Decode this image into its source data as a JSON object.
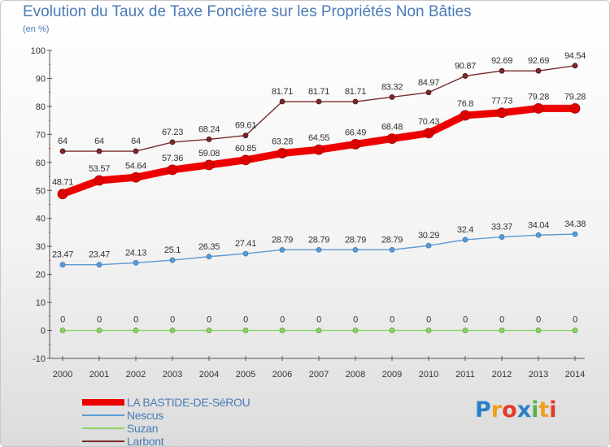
{
  "header": {
    "title": "Evolution du Taux de Taxe Foncière sur les Propriétés Non Bâties",
    "unit": "(en %)"
  },
  "logo": {
    "text": "Proxiti",
    "colors": [
      "#2c7fc9",
      "#f0a020",
      "#e23a2a",
      "#2c7fc9",
      "#56b447",
      "#f0a020",
      "#e23a2a"
    ]
  },
  "chart_data": {
    "type": "line",
    "title": "Evolution du Taux de Taxe Foncière sur les Propriétés Non Bâties",
    "ylabel": "(en %)",
    "xlabel": "",
    "x": [
      "2000",
      "2001",
      "2002",
      "2003",
      "2004",
      "2005",
      "2006",
      "2007",
      "2008",
      "2009",
      "2010",
      "2011",
      "2012",
      "2013",
      "2014"
    ],
    "ylim": [
      -10,
      100
    ],
    "yticks": [
      "-10",
      "0",
      "10",
      "20",
      "30",
      "40",
      "50",
      "60",
      "70",
      "80",
      "90",
      "100"
    ],
    "grid": false,
    "legend": "bottom-left",
    "series": [
      {
        "name": "LA BASTIDE-DE-SéROU",
        "color": "#ee0000",
        "values": [
          48.71,
          53.57,
          54.64,
          57.36,
          59.08,
          60.85,
          63.28,
          64.55,
          66.49,
          68.48,
          70.43,
          76.8,
          77.73,
          79.28,
          79.28
        ],
        "labels": [
          "48.71",
          "53.57",
          "54.64",
          "57.36",
          "59.08",
          "60.85",
          "63.28",
          "64.55",
          "66.49",
          "68.48",
          "70.43",
          "76.8",
          "77.73",
          "79.28",
          "79.28"
        ]
      },
      {
        "name": "Nescus",
        "color": "#5b9bd5",
        "values": [
          23.47,
          23.47,
          24.13,
          25.1,
          26.35,
          27.41,
          28.79,
          28.79,
          28.79,
          28.79,
          30.29,
          32.4,
          33.37,
          34.04,
          34.38
        ],
        "labels": [
          "23.47",
          "23.47",
          "24.13",
          "25.1",
          "26.35",
          "27.41",
          "28.79",
          "28.79",
          "28.79",
          "28.79",
          "30.29",
          "32.4",
          "33.37",
          "34.04",
          "34.38"
        ]
      },
      {
        "name": "Suzan",
        "color": "#8ed165",
        "values": [
          0,
          0,
          0,
          0,
          0,
          0,
          0,
          0,
          0,
          0,
          0,
          0,
          0,
          0,
          0
        ],
        "labels": [
          "0",
          "0",
          "0",
          "0",
          "0",
          "0",
          "0",
          "0",
          "0",
          "0",
          "0",
          "0",
          "0",
          "0",
          "0"
        ]
      },
      {
        "name": "Larbont",
        "color": "#7a2a2a",
        "values": [
          64,
          64,
          64,
          67.23,
          68.24,
          69.61,
          81.71,
          81.71,
          81.71,
          83.32,
          84.97,
          90.87,
          92.69,
          92.69,
          94.54
        ],
        "labels": [
          "64",
          "64",
          "64",
          "67.23",
          "68.24",
          "69.61",
          "81.71",
          "81.71",
          "81.71",
          "83.32",
          "84.97",
          "90.87",
          "92.69",
          "92.69",
          "94.54"
        ]
      }
    ]
  }
}
